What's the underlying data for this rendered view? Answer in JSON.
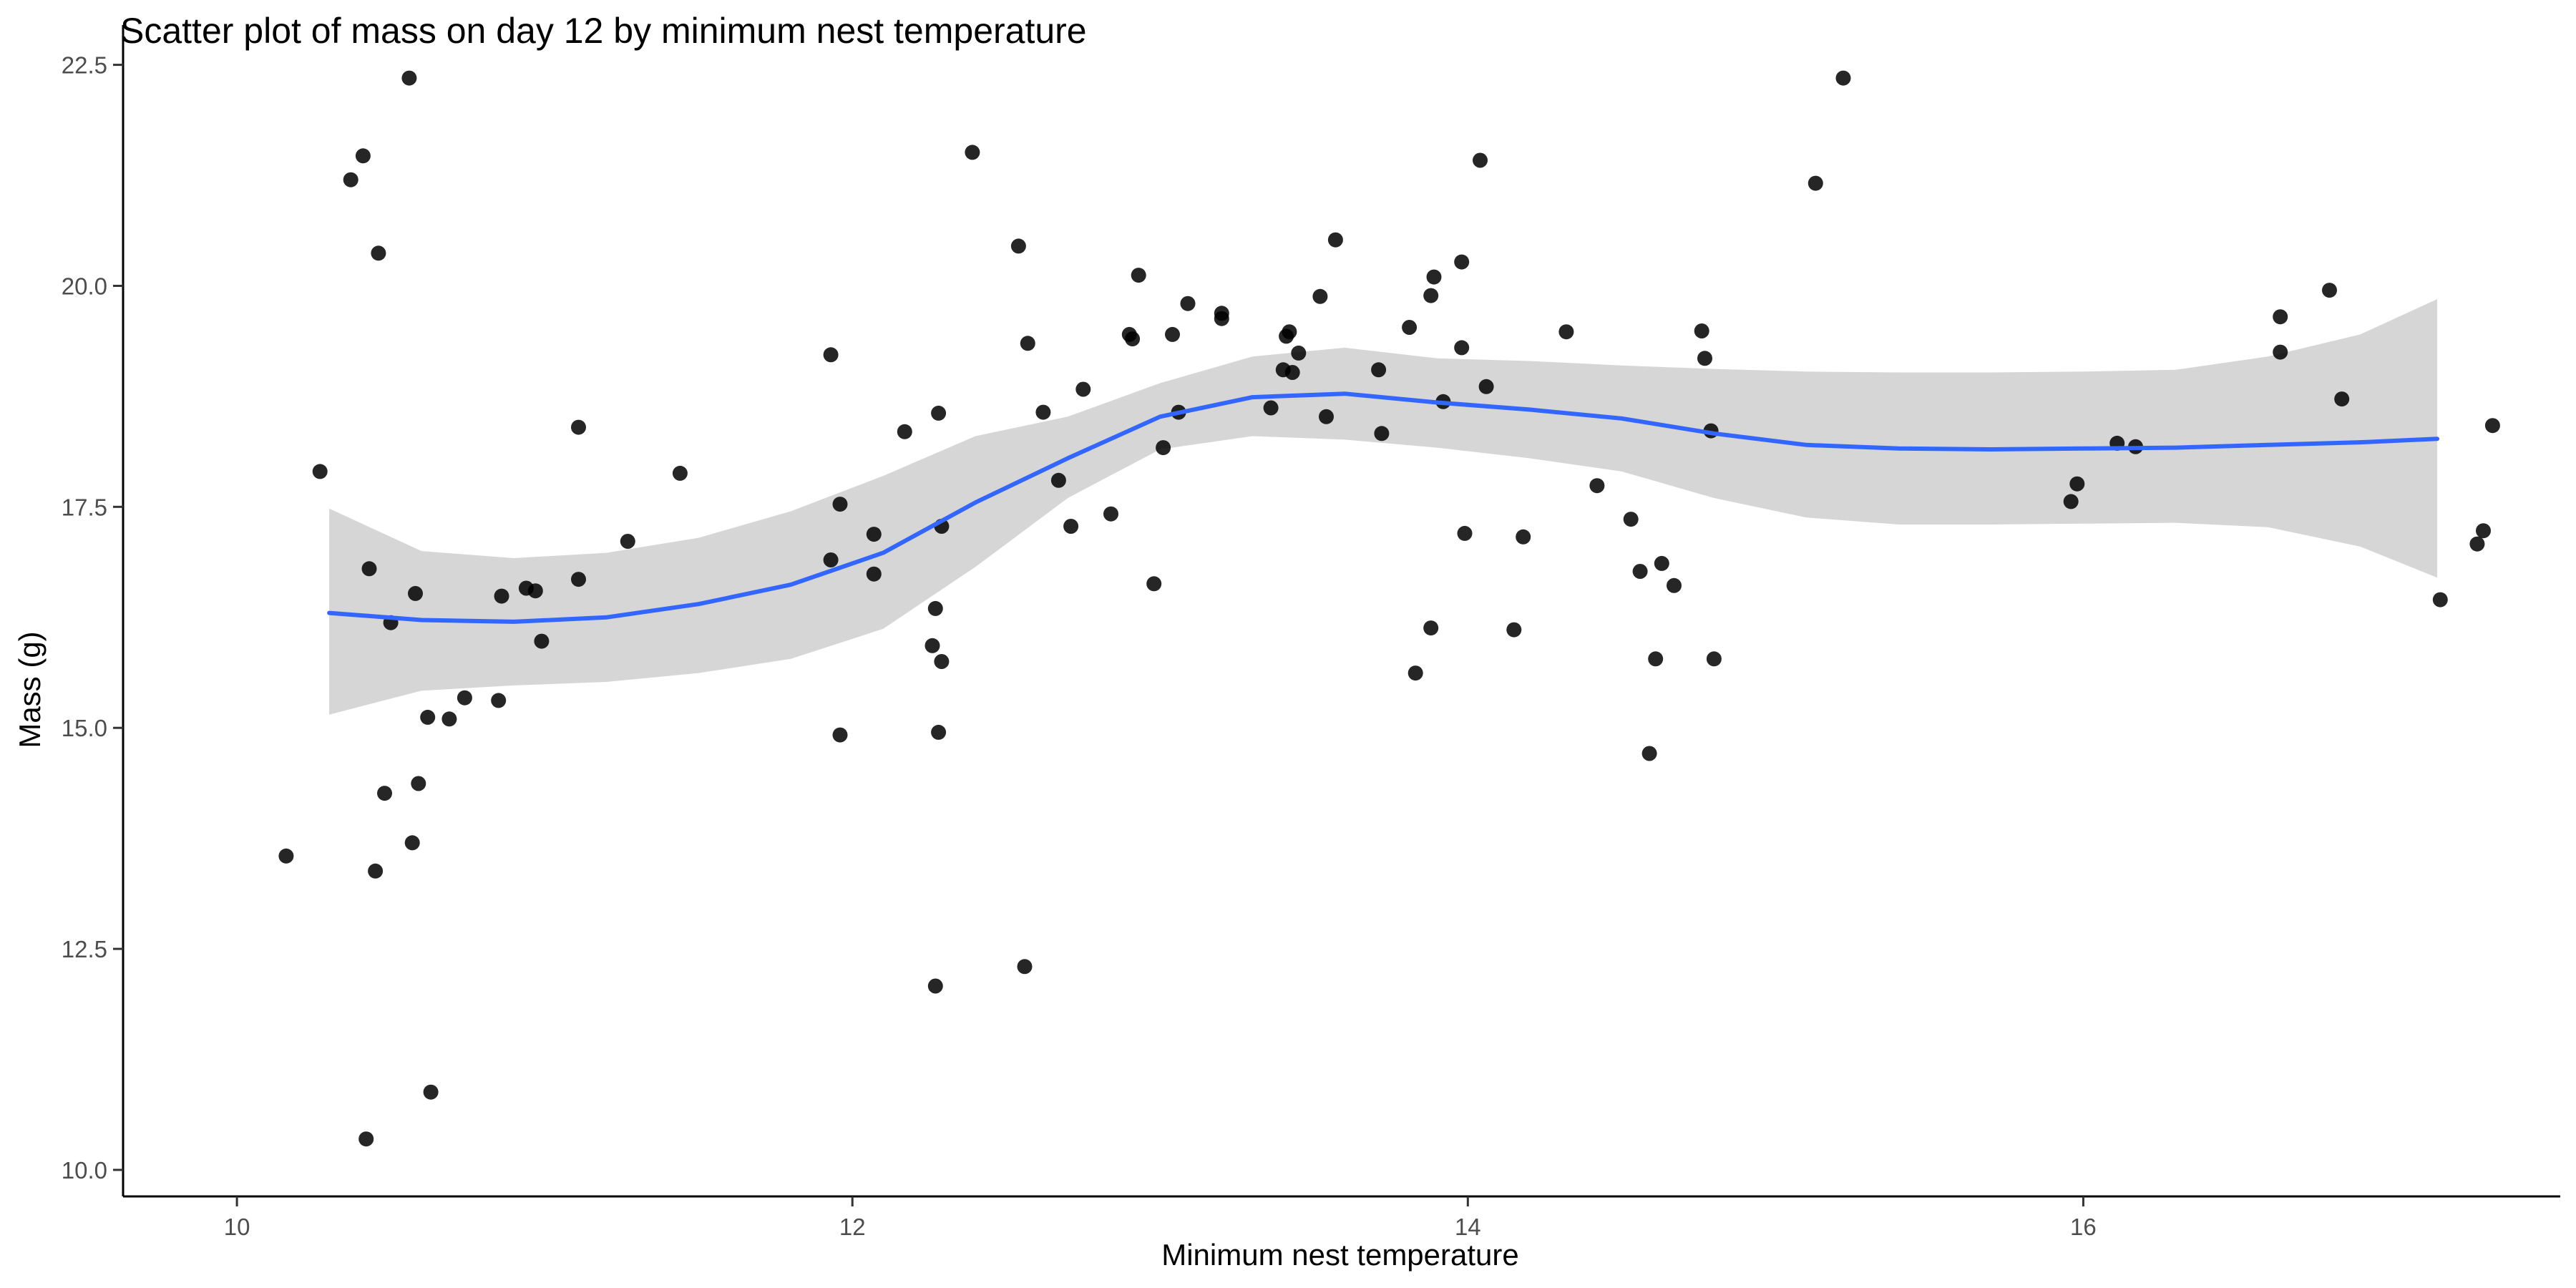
{
  "chart_data": {
    "type": "scatter",
    "title": "Scatter plot of mass on day 12 by minimum nest temperature",
    "xlabel": "Minimum nest temperature",
    "ylabel": "Mass (g)",
    "xlim": [
      9.63,
      17.55
    ],
    "ylim": [
      9.7,
      22.95
    ],
    "xticks": [
      10,
      12,
      14,
      16
    ],
    "yticks": [
      10.0,
      12.5,
      15.0,
      17.5,
      20.0,
      22.5
    ],
    "xtick_labels": [
      "10",
      "12",
      "14",
      "16"
    ],
    "ytick_labels": [
      "10.0",
      "12.5",
      "15.0",
      "17.5",
      "20.0",
      "22.5"
    ],
    "grid": false,
    "legend": "none",
    "point_color": "#000000",
    "smooth_color": "#3366FF",
    "band_color": "#D6D6D6",
    "points": [
      [
        10.16,
        13.55
      ],
      [
        10.27,
        17.9
      ],
      [
        10.37,
        21.2
      ],
      [
        10.41,
        21.47
      ],
      [
        10.42,
        10.35
      ],
      [
        10.43,
        16.8
      ],
      [
        10.45,
        13.38
      ],
      [
        10.46,
        20.37
      ],
      [
        10.48,
        14.26
      ],
      [
        10.5,
        16.19
      ],
      [
        10.56,
        22.35
      ],
      [
        10.57,
        13.7
      ],
      [
        10.58,
        16.52
      ],
      [
        10.59,
        14.37
      ],
      [
        10.62,
        15.12
      ],
      [
        10.63,
        10.88
      ],
      [
        10.69,
        15.1
      ],
      [
        10.74,
        15.34
      ],
      [
        10.85,
        15.31
      ],
      [
        10.86,
        16.49
      ],
      [
        10.94,
        16.58
      ],
      [
        10.97,
        16.55
      ],
      [
        10.99,
        15.98
      ],
      [
        11.11,
        18.4
      ],
      [
        11.11,
        16.68
      ],
      [
        11.27,
        17.11
      ],
      [
        11.44,
        17.88
      ],
      [
        11.93,
        19.22
      ],
      [
        11.93,
        16.9
      ],
      [
        11.96,
        17.53
      ],
      [
        11.96,
        14.92
      ],
      [
        12.07,
        17.19
      ],
      [
        12.07,
        16.74
      ],
      [
        12.17,
        18.35
      ],
      [
        12.26,
        15.93
      ],
      [
        12.27,
        16.35
      ],
      [
        12.27,
        12.08
      ],
      [
        12.28,
        18.56
      ],
      [
        12.28,
        14.95
      ],
      [
        12.29,
        15.75
      ],
      [
        12.29,
        17.28
      ],
      [
        12.39,
        21.51
      ],
      [
        12.54,
        20.45
      ],
      [
        12.56,
        12.3
      ],
      [
        12.57,
        19.35
      ],
      [
        12.62,
        18.57
      ],
      [
        12.67,
        17.8
      ],
      [
        12.71,
        17.28
      ],
      [
        12.75,
        18.83
      ],
      [
        12.84,
        17.42
      ],
      [
        12.9,
        19.45
      ],
      [
        12.91,
        19.4
      ],
      [
        12.93,
        20.12
      ],
      [
        12.98,
        16.63
      ],
      [
        13.01,
        18.17
      ],
      [
        13.04,
        19.45
      ],
      [
        13.06,
        18.57
      ],
      [
        13.09,
        19.8
      ],
      [
        13.2,
        19.69
      ],
      [
        13.2,
        19.63
      ],
      [
        13.36,
        18.62
      ],
      [
        13.4,
        19.05
      ],
      [
        13.41,
        19.43
      ],
      [
        13.42,
        19.48
      ],
      [
        13.43,
        19.02
      ],
      [
        13.45,
        19.24
      ],
      [
        13.52,
        19.88
      ],
      [
        13.54,
        18.52
      ],
      [
        13.57,
        20.52
      ],
      [
        13.71,
        19.05
      ],
      [
        13.72,
        18.33
      ],
      [
        13.81,
        19.53
      ],
      [
        13.83,
        15.62
      ],
      [
        13.88,
        16.13
      ],
      [
        13.88,
        19.89
      ],
      [
        13.89,
        20.1
      ],
      [
        13.92,
        18.69
      ],
      [
        13.98,
        20.27
      ],
      [
        13.98,
        19.3
      ],
      [
        13.99,
        17.2
      ],
      [
        14.04,
        21.42
      ],
      [
        14.06,
        18.86
      ],
      [
        14.15,
        16.11
      ],
      [
        14.18,
        17.16
      ],
      [
        14.32,
        19.48
      ],
      [
        14.42,
        17.74
      ],
      [
        14.53,
        17.36
      ],
      [
        14.56,
        16.77
      ],
      [
        14.59,
        14.71
      ],
      [
        14.61,
        15.78
      ],
      [
        14.63,
        16.86
      ],
      [
        14.67,
        16.61
      ],
      [
        14.76,
        19.49
      ],
      [
        14.77,
        19.18
      ],
      [
        14.79,
        18.36
      ],
      [
        14.8,
        15.78
      ],
      [
        15.13,
        21.16
      ],
      [
        15.22,
        22.35
      ],
      [
        15.96,
        17.56
      ],
      [
        15.98,
        17.76
      ],
      [
        16.11,
        18.22
      ],
      [
        16.17,
        18.18
      ],
      [
        16.64,
        19.25
      ],
      [
        16.64,
        19.65
      ],
      [
        16.8,
        19.95
      ],
      [
        16.84,
        18.72
      ],
      [
        17.16,
        16.45
      ],
      [
        17.28,
        17.08
      ],
      [
        17.3,
        17.23
      ],
      [
        17.33,
        18.42
      ]
    ],
    "smooth": {
      "x": [
        10.3,
        10.6,
        10.9,
        11.2,
        11.5,
        11.8,
        12.1,
        12.4,
        12.7,
        13.0,
        13.3,
        13.6,
        13.9,
        14.2,
        14.5,
        14.8,
        15.1,
        15.4,
        15.7,
        16.0,
        16.3,
        16.6,
        16.9,
        17.15
      ],
      "y": [
        16.3,
        16.22,
        16.2,
        16.25,
        16.4,
        16.62,
        16.98,
        17.55,
        18.05,
        18.52,
        18.74,
        18.78,
        18.68,
        18.6,
        18.5,
        18.33,
        18.2,
        18.16,
        18.15,
        18.16,
        18.17,
        18.2,
        18.23,
        18.27
      ],
      "lower": [
        15.15,
        15.42,
        15.48,
        15.52,
        15.62,
        15.78,
        16.12,
        16.82,
        17.6,
        18.15,
        18.3,
        18.26,
        18.17,
        18.05,
        17.9,
        17.6,
        17.38,
        17.3,
        17.3,
        17.31,
        17.32,
        17.27,
        17.05,
        16.7
      ],
      "upper": [
        17.48,
        17.0,
        16.92,
        16.98,
        17.15,
        17.45,
        17.85,
        18.3,
        18.52,
        18.9,
        19.2,
        19.3,
        19.18,
        19.15,
        19.1,
        19.06,
        19.03,
        19.02,
        19.02,
        19.03,
        19.05,
        19.2,
        19.45,
        19.85
      ]
    }
  }
}
